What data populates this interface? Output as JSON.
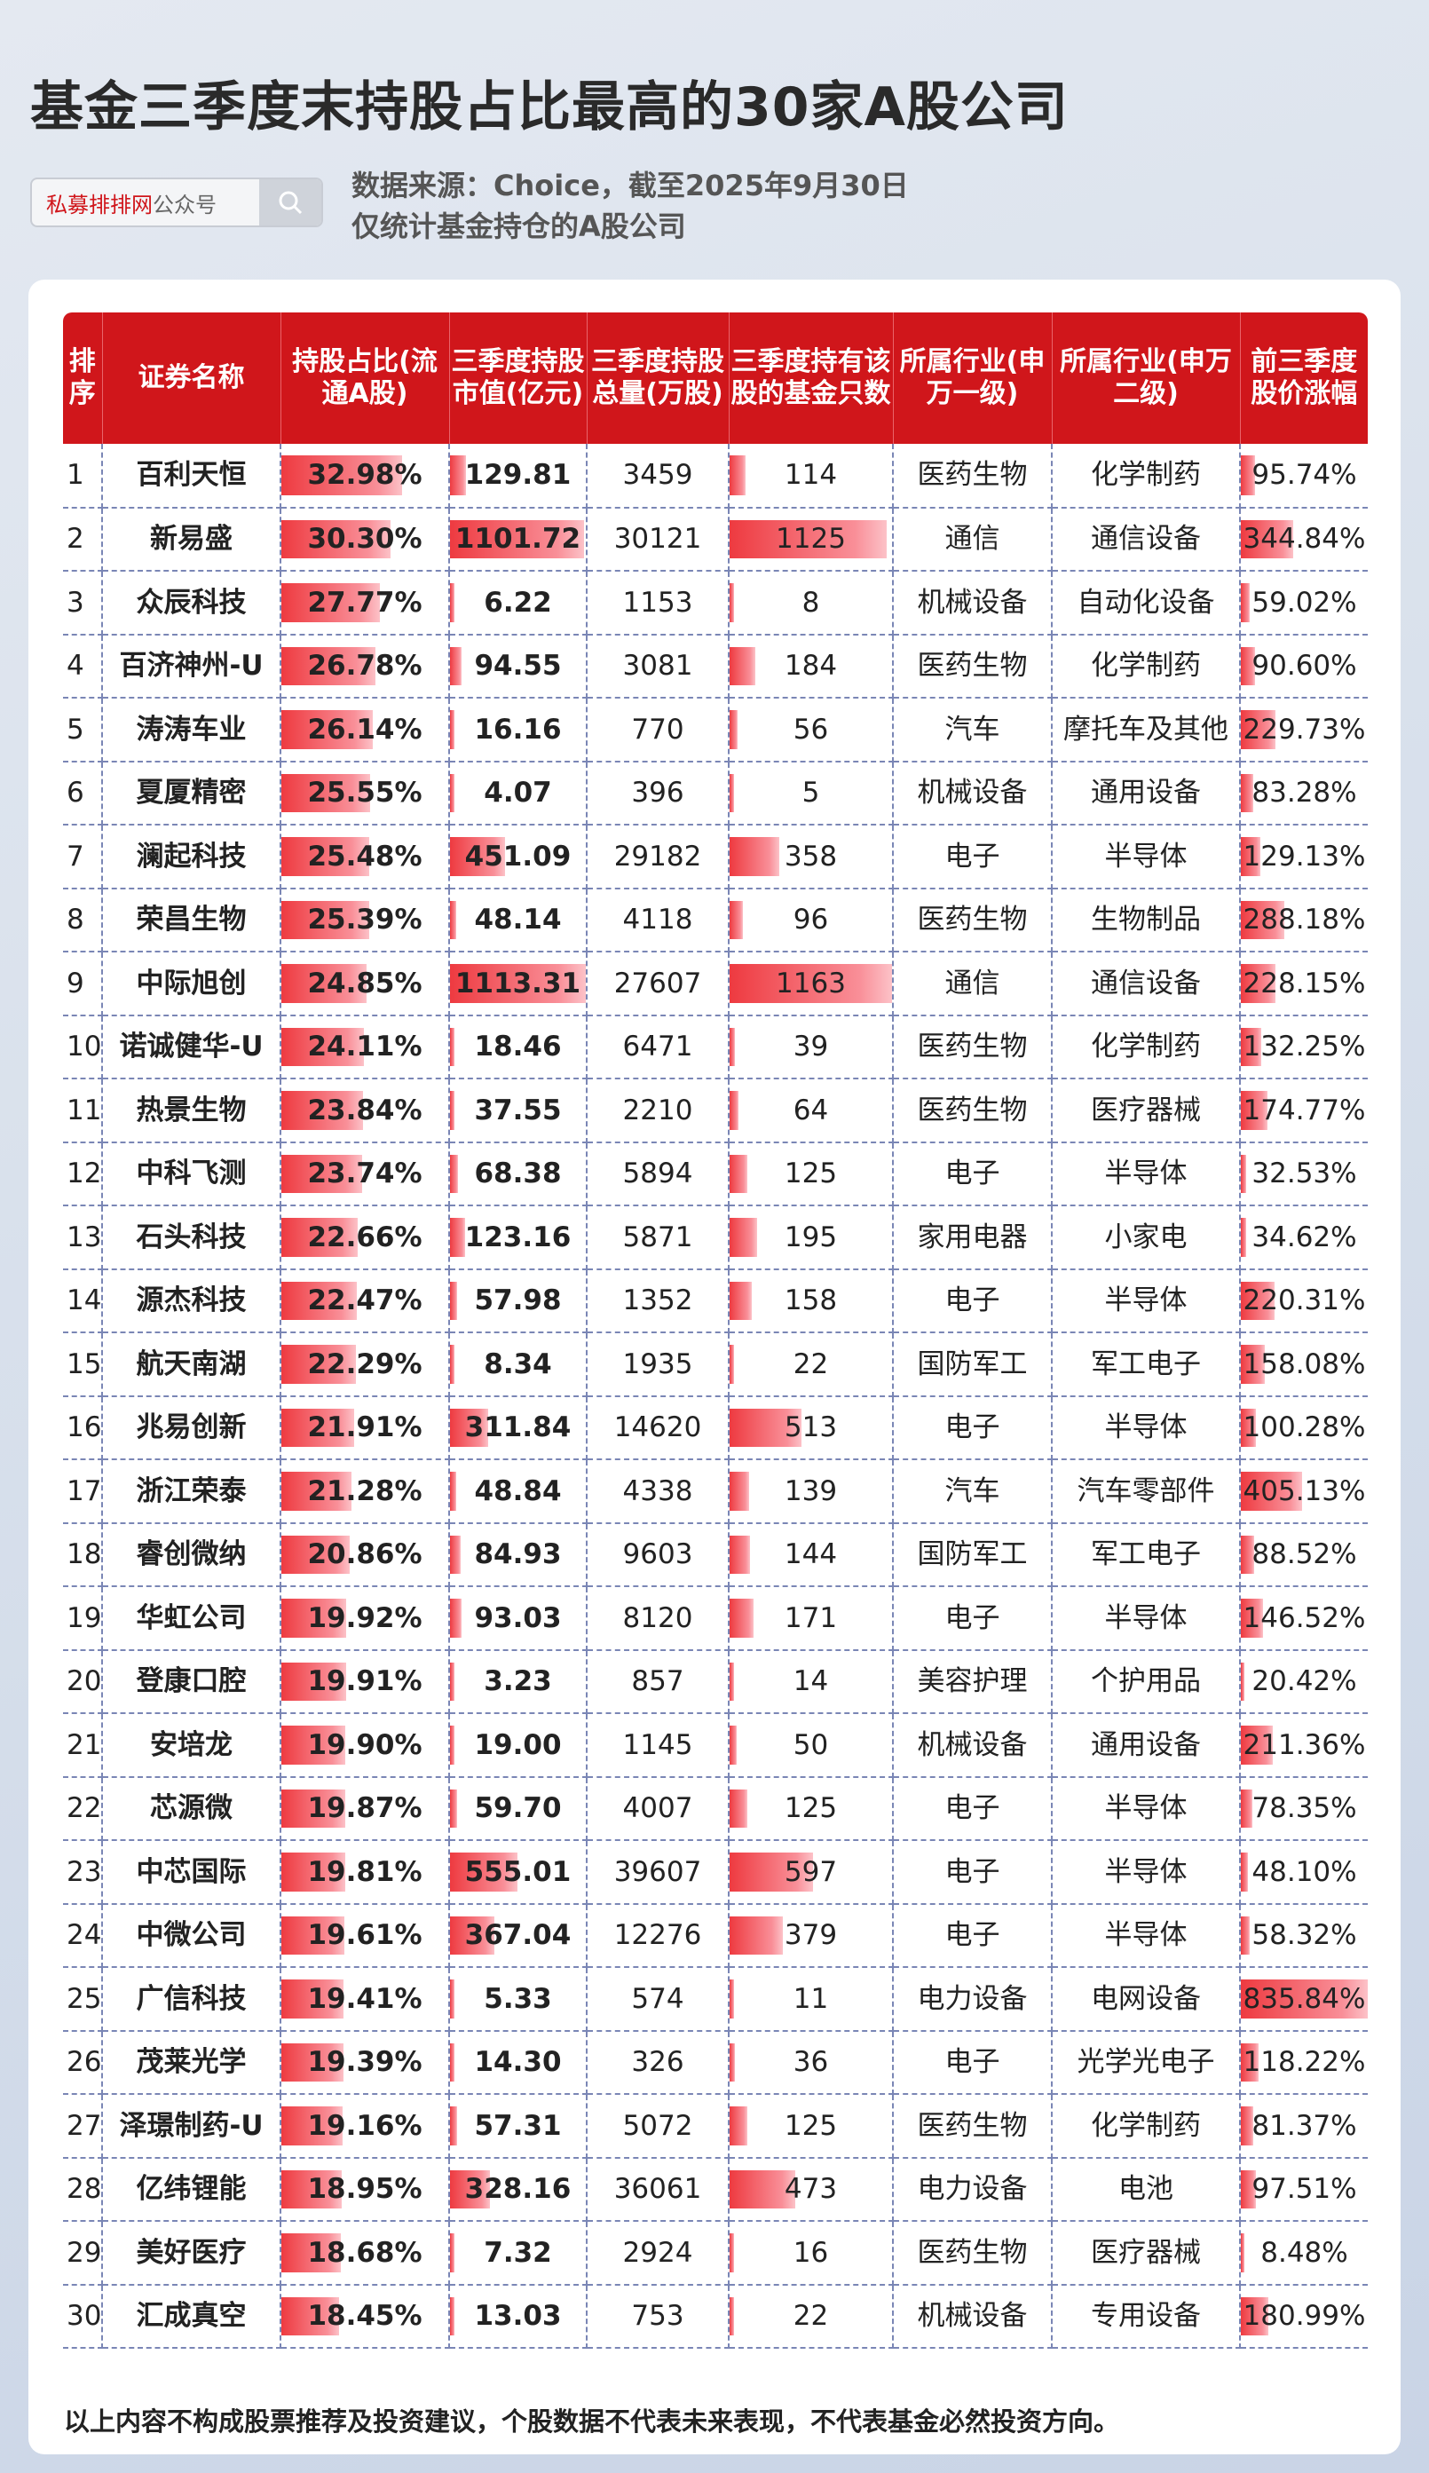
{
  "title": "基金三季度末持股占比最高的30家A股公司",
  "search": {
    "brand": "私募排排网",
    "suffix": "公众号",
    "icon": "search-icon"
  },
  "source_line1": "数据来源：Choice，截至2025年9月30日",
  "source_line2": "仅统计基金持仓的A股公司",
  "colors": {
    "header": "#d0161b",
    "bar": "#ee3a40"
  },
  "headers": [
    "排序",
    "证券名称",
    "持股占比(流通A股)",
    "三季度持股市值(亿元)",
    "三季度持股总量(万股)",
    "三季度持有该股的基金只数",
    "所属行业(申万一级)",
    "所属行业(申万二级)",
    "前三季度股价涨幅"
  ],
  "rows": [
    [
      "1",
      "百利天恒",
      "32.98%",
      "129.81",
      "3459",
      "114",
      "医药生物",
      "化学制药",
      "95.74%"
    ],
    [
      "2",
      "新易盛",
      "30.30%",
      "1101.72",
      "30121",
      "1125",
      "通信",
      "通信设备",
      "344.84%"
    ],
    [
      "3",
      "众辰科技",
      "27.77%",
      "6.22",
      "1153",
      "8",
      "机械设备",
      "自动化设备",
      "59.02%"
    ],
    [
      "4",
      "百济神州-U",
      "26.78%",
      "94.55",
      "3081",
      "184",
      "医药生物",
      "化学制药",
      "90.60%"
    ],
    [
      "5",
      "涛涛车业",
      "26.14%",
      "16.16",
      "770",
      "56",
      "汽车",
      "摩托车及其他",
      "229.73%"
    ],
    [
      "6",
      "夏厦精密",
      "25.55%",
      "4.07",
      "396",
      "5",
      "机械设备",
      "通用设备",
      "83.28%"
    ],
    [
      "7",
      "澜起科技",
      "25.48%",
      "451.09",
      "29182",
      "358",
      "电子",
      "半导体",
      "129.13%"
    ],
    [
      "8",
      "荣昌生物",
      "25.39%",
      "48.14",
      "4118",
      "96",
      "医药生物",
      "生物制品",
      "288.18%"
    ],
    [
      "9",
      "中际旭创",
      "24.85%",
      "1113.31",
      "27607",
      "1163",
      "通信",
      "通信设备",
      "228.15%"
    ],
    [
      "10",
      "诺诚健华-U",
      "24.11%",
      "18.46",
      "6471",
      "39",
      "医药生物",
      "化学制药",
      "132.25%"
    ],
    [
      "11",
      "热景生物",
      "23.84%",
      "37.55",
      "2210",
      "64",
      "医药生物",
      "医疗器械",
      "174.77%"
    ],
    [
      "12",
      "中科飞测",
      "23.74%",
      "68.38",
      "5894",
      "125",
      "电子",
      "半导体",
      "32.53%"
    ],
    [
      "13",
      "石头科技",
      "22.66%",
      "123.16",
      "5871",
      "195",
      "家用电器",
      "小家电",
      "34.62%"
    ],
    [
      "14",
      "源杰科技",
      "22.47%",
      "57.98",
      "1352",
      "158",
      "电子",
      "半导体",
      "220.31%"
    ],
    [
      "15",
      "航天南湖",
      "22.29%",
      "8.34",
      "1935",
      "22",
      "国防军工",
      "军工电子",
      "158.08%"
    ],
    [
      "16",
      "兆易创新",
      "21.91%",
      "311.84",
      "14620",
      "513",
      "电子",
      "半导体",
      "100.28%"
    ],
    [
      "17",
      "浙江荣泰",
      "21.28%",
      "48.84",
      "4338",
      "139",
      "汽车",
      "汽车零部件",
      "405.13%"
    ],
    [
      "18",
      "睿创微纳",
      "20.86%",
      "84.93",
      "9603",
      "144",
      "国防军工",
      "军工电子",
      "88.52%"
    ],
    [
      "19",
      "华虹公司",
      "19.92%",
      "93.03",
      "8120",
      "171",
      "电子",
      "半导体",
      "146.52%"
    ],
    [
      "20",
      "登康口腔",
      "19.91%",
      "3.23",
      "857",
      "14",
      "美容护理",
      "个护用品",
      "20.42%"
    ],
    [
      "21",
      "安培龙",
      "19.90%",
      "19.00",
      "1145",
      "50",
      "机械设备",
      "通用设备",
      "211.36%"
    ],
    [
      "22",
      "芯源微",
      "19.87%",
      "59.70",
      "4007",
      "125",
      "电子",
      "半导体",
      "78.35%"
    ],
    [
      "23",
      "中芯国际",
      "19.81%",
      "555.01",
      "39607",
      "597",
      "电子",
      "半导体",
      "48.10%"
    ],
    [
      "24",
      "中微公司",
      "19.61%",
      "367.04",
      "12276",
      "379",
      "电子",
      "半导体",
      "58.32%"
    ],
    [
      "25",
      "广信科技",
      "19.41%",
      "5.33",
      "574",
      "11",
      "电力设备",
      "电网设备",
      "835.84%"
    ],
    [
      "26",
      "茂莱光学",
      "19.39%",
      "14.30",
      "326",
      "36",
      "电子",
      "光学光电子",
      "118.22%"
    ],
    [
      "27",
      "泽璟制药-U",
      "19.16%",
      "57.31",
      "5072",
      "125",
      "医药生物",
      "化学制药",
      "81.37%"
    ],
    [
      "28",
      "亿纬锂能",
      "18.95%",
      "328.16",
      "36061",
      "473",
      "电力设备",
      "电池",
      "97.51%"
    ],
    [
      "29",
      "美好医疗",
      "18.68%",
      "7.32",
      "2924",
      "16",
      "医药生物",
      "医疗器械",
      "8.48%"
    ],
    [
      "30",
      "汇成真空",
      "18.45%",
      "13.03",
      "753",
      "22",
      "机械设备",
      "专用设备",
      "180.99%"
    ]
  ],
  "footer": "以上内容不构成股票推荐及投资建议，个股数据不代表未来表现，不代表基金必然投资方向。"
}
